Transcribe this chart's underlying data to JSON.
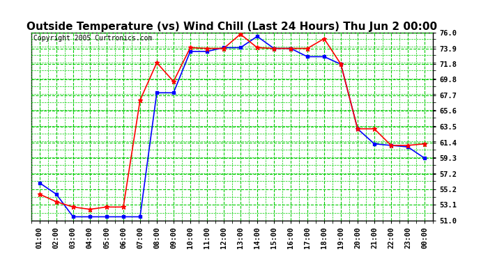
{
  "title": "Outside Temperature (vs) Wind Chill (Last 24 Hours) Thu Jun 2 00:00",
  "copyright": "Copyright 2005 Curtronics.com",
  "background_color": "#ffffff",
  "plot_bg_color": "#ffffff",
  "grid_color": "#00cc00",
  "x_labels": [
    "01:00",
    "02:00",
    "03:00",
    "04:00",
    "05:00",
    "06:00",
    "07:00",
    "08:00",
    "09:00",
    "10:00",
    "11:00",
    "12:00",
    "13:00",
    "14:00",
    "15:00",
    "16:00",
    "17:00",
    "18:00",
    "19:00",
    "20:00",
    "21:00",
    "22:00",
    "23:00",
    "00:00"
  ],
  "y_ticks": [
    51.0,
    53.1,
    55.2,
    57.2,
    59.3,
    61.4,
    63.5,
    65.6,
    67.7,
    69.8,
    71.8,
    73.9,
    76.0
  ],
  "ylim": [
    51.0,
    76.0
  ],
  "blue_data": [
    56.0,
    54.5,
    51.5,
    51.5,
    51.5,
    51.5,
    51.5,
    68.0,
    68.0,
    73.5,
    73.5,
    74.0,
    74.0,
    75.5,
    73.9,
    73.9,
    72.8,
    72.8,
    71.8,
    63.2,
    61.2,
    61.0,
    60.8,
    59.3
  ],
  "red_data": [
    54.5,
    53.5,
    52.8,
    52.5,
    52.8,
    52.8,
    67.0,
    72.0,
    69.5,
    74.0,
    73.9,
    73.9,
    75.8,
    74.0,
    73.9,
    73.9,
    73.9,
    75.2,
    71.8,
    63.2,
    63.2,
    61.0,
    61.0,
    61.2
  ],
  "blue_color": "#0000ff",
  "red_color": "#ff0000",
  "line_width": 1.2,
  "marker": "s",
  "marker_size": 3,
  "title_fontsize": 11,
  "tick_fontsize": 7.5,
  "copyright_fontsize": 7
}
